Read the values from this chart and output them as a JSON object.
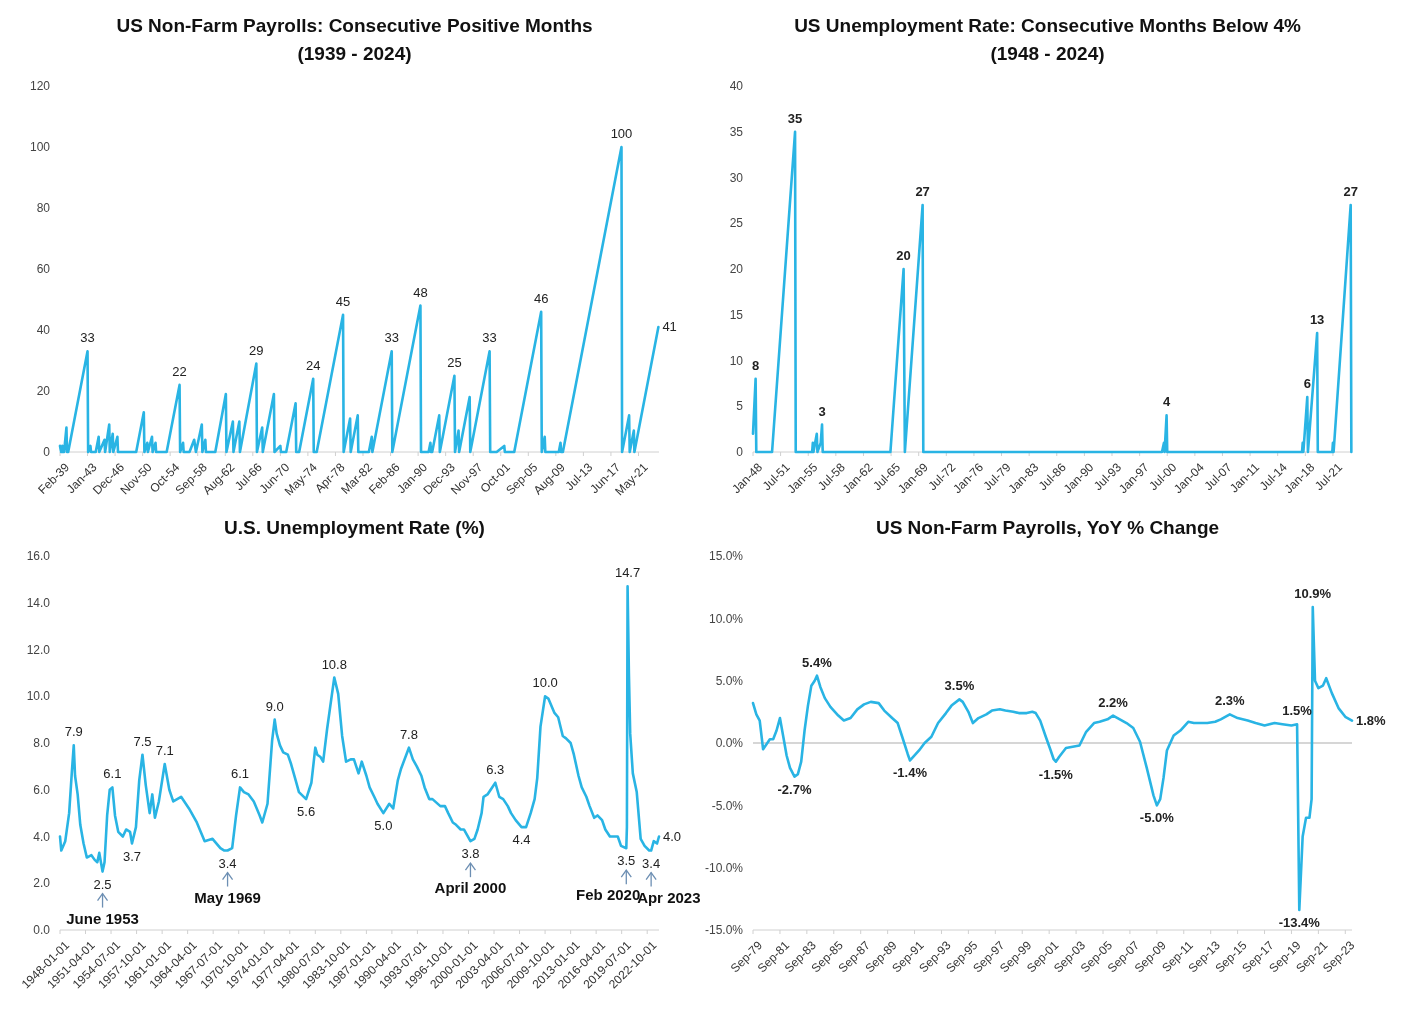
{
  "chart_data": [
    {
      "type": "line",
      "title": "US Non-Farm Payrolls: Consecutive Positive Months",
      "subtitle": "(1939 - 2024)",
      "x": [
        "1939-02",
        "1939-04",
        "1939-06",
        "1939-07",
        "1939-09",
        "1940-01",
        "1940-02",
        "1940-04",
        "1943-01",
        "1943-02",
        "1943-06",
        "1943-07",
        "1944-03",
        "1944-08",
        "1944-09",
        "1945-06",
        "1945-07",
        "1946-02",
        "1946-03",
        "1946-08",
        "1946-09",
        "1947-04",
        "1947-05",
        "1949-12",
        "1951-01",
        "1951-02",
        "1951-07",
        "1951-08",
        "1952-03",
        "1952-04",
        "1952-09",
        "1952-10",
        "1954-04",
        "1956-02",
        "1956-03",
        "1956-08",
        "1956-09",
        "1957-07",
        "1958-03",
        "1958-06",
        "1959-04",
        "1959-05",
        "1959-10",
        "1959-11",
        "1961-03",
        "1962-09",
        "1962-10",
        "1963-09",
        "1963-10",
        "1964-08",
        "1964-09",
        "1967-01",
        "1967-02",
        "1967-11",
        "1967-12",
        "1969-07",
        "1969-08",
        "1970-06",
        "1970-07",
        "1971-04",
        "1972-08",
        "1972-09",
        "1973-02",
        "1975-02",
        "1975-03",
        "1975-08",
        "1979-05",
        "1979-06",
        "1980-05",
        "1980-06",
        "1981-06",
        "1981-07",
        "1983-01",
        "1983-06",
        "1983-07",
        "1986-04",
        "1986-05",
        "1990-05",
        "1990-06",
        "1991-07",
        "1991-10",
        "1991-11",
        "1992-01",
        "1993-01",
        "1993-02",
        "1995-03",
        "1995-04",
        "1995-10",
        "1995-11",
        "1997-05",
        "1997-06",
        "2000-03",
        "2000-04",
        "2001-03",
        "2002-04",
        "2002-05",
        "2003-09",
        "2007-07",
        "2007-08",
        "2008-01",
        "2008-02",
        "2010-01",
        "2010-04",
        "2010-05",
        "2010-08",
        "2018-12",
        "2019-01",
        "2020-01",
        "2020-02",
        "2020-09",
        "2020-10",
        "2024-03"
      ],
      "series": [
        {
          "color": "#29b4e4",
          "values": [
            2,
            0,
            2,
            0,
            0,
            8,
            0,
            0,
            33,
            0,
            2,
            0,
            0,
            5,
            0,
            4,
            0,
            9,
            0,
            6,
            0,
            5,
            0,
            0,
            13,
            0,
            3,
            0,
            5,
            0,
            3,
            0,
            0,
            22,
            0,
            3,
            0,
            0,
            4,
            0,
            9,
            0,
            4,
            0,
            0,
            19,
            0,
            10,
            0,
            10,
            0,
            29,
            0,
            8,
            0,
            19,
            0,
            2,
            0,
            0,
            16,
            0,
            0,
            24,
            0,
            0,
            45,
            0,
            11,
            0,
            12,
            0,
            0,
            5,
            0,
            33,
            0,
            48,
            0,
            0,
            3,
            0,
            0,
            12,
            0,
            25,
            0,
            7,
            0,
            18,
            0,
            33,
            0,
            0,
            2,
            0,
            0,
            46,
            0,
            5,
            0,
            0,
            3,
            0,
            0,
            100,
            0,
            12,
            0,
            7,
            0,
            41
          ],
          "value_labels": [
            null,
            null,
            null,
            null,
            null,
            null,
            null,
            null,
            "33",
            null,
            null,
            null,
            null,
            null,
            null,
            null,
            null,
            null,
            null,
            null,
            null,
            null,
            null,
            null,
            null,
            null,
            null,
            null,
            null,
            null,
            null,
            null,
            null,
            "22",
            null,
            null,
            null,
            null,
            null,
            null,
            null,
            null,
            null,
            null,
            null,
            null,
            null,
            null,
            null,
            null,
            null,
            "29",
            null,
            null,
            null,
            null,
            null,
            null,
            null,
            null,
            null,
            null,
            null,
            "24",
            null,
            null,
            "45",
            null,
            null,
            null,
            null,
            null,
            null,
            null,
            null,
            "33",
            null,
            "48",
            null,
            null,
            null,
            null,
            null,
            null,
            null,
            "25",
            null,
            null,
            null,
            null,
            null,
            "33",
            null,
            null,
            null,
            null,
            null,
            "46",
            null,
            null,
            null,
            null,
            null,
            null,
            null,
            "100",
            null,
            null,
            null,
            null,
            null,
            "41"
          ]
        }
      ],
      "xlim": [
        "1939-02",
        "2024-04"
      ],
      "xticks": [
        {
          "value": "1939-02",
          "label": "Feb-39"
        },
        {
          "value": "1943-01",
          "label": "Jan-43"
        },
        {
          "value": "1946-12",
          "label": "Dec-46"
        },
        {
          "value": "1950-11",
          "label": "Nov-50"
        },
        {
          "value": "1954-10",
          "label": "Oct-54"
        },
        {
          "value": "1958-09",
          "label": "Sep-58"
        },
        {
          "value": "1962-08",
          "label": "Aug-62"
        },
        {
          "value": "1966-07",
          "label": "Jul-66"
        },
        {
          "value": "1970-06",
          "label": "Jun-70"
        },
        {
          "value": "1974-05",
          "label": "May-74"
        },
        {
          "value": "1978-04",
          "label": "Apr-78"
        },
        {
          "value": "1982-03",
          "label": "Mar-82"
        },
        {
          "value": "1986-02",
          "label": "Feb-86"
        },
        {
          "value": "1990-01",
          "label": "Jan-90"
        },
        {
          "value": "1993-12",
          "label": "Dec-93"
        },
        {
          "value": "1997-11",
          "label": "Nov-97"
        },
        {
          "value": "2001-10",
          "label": "Oct-01"
        },
        {
          "value": "2005-09",
          "label": "Sep-05"
        },
        {
          "value": "2009-08",
          "label": "Aug-09"
        },
        {
          "value": "2013-07",
          "label": "Jul-13"
        },
        {
          "value": "2017-06",
          "label": "Jun-17"
        },
        {
          "value": "2021-05",
          "label": "May-21"
        }
      ],
      "ylim": [
        0,
        120
      ],
      "yticks": [
        0,
        20,
        40,
        60,
        80,
        100,
        120
      ]
    },
    {
      "type": "line",
      "title": "US Unemployment Rate: Consecutive Months Below 4%",
      "subtitle": "(1948 - 2024)",
      "x": [
        "1948-01",
        "1948-05",
        "1948-06",
        "1950-06",
        "1953-05",
        "1953-06",
        "1955-07",
        "1955-08",
        "1955-09",
        "1956-02",
        "1956-03",
        "1956-08",
        "1956-10",
        "1956-11",
        "1965-06",
        "1967-02",
        "1967-04",
        "1969-07",
        "1969-08",
        "1999-11",
        "2000-02",
        "2000-03",
        "2000-06",
        "2000-07",
        "2017-08",
        "2017-09",
        "2017-10",
        "2018-04",
        "2018-05",
        "2019-07",
        "2019-08",
        "2021-06",
        "2021-07",
        "2021-08",
        "2023-10",
        "2023-11"
      ],
      "series": [
        {
          "color": "#29b4e4",
          "values": [
            2,
            8,
            0,
            0,
            35,
            0,
            0,
            1,
            0,
            2,
            0,
            1,
            3,
            0,
            0,
            20,
            0,
            27,
            0,
            0,
            1,
            0,
            4,
            0,
            0,
            1,
            0,
            6,
            0,
            13,
            0,
            0,
            1,
            0,
            27,
            0
          ],
          "value_labels": [
            null,
            "8",
            null,
            null,
            "35",
            null,
            null,
            null,
            null,
            null,
            null,
            null,
            "3",
            null,
            null,
            "20",
            null,
            "27",
            null,
            null,
            null,
            null,
            "4",
            null,
            null,
            null,
            null,
            "6",
            null,
            "13",
            null,
            null,
            null,
            null,
            "27",
            null
          ]
        }
      ],
      "xlim": [
        "1948-01",
        "2023-12"
      ],
      "xticks": [
        {
          "value": "1948-01",
          "label": "Jan-48"
        },
        {
          "value": "1951-07",
          "label": "Jul-51"
        },
        {
          "value": "1955-01",
          "label": "Jan-55"
        },
        {
          "value": "1958-07",
          "label": "Jul-58"
        },
        {
          "value": "1962-01",
          "label": "Jan-62"
        },
        {
          "value": "1965-07",
          "label": "Jul-65"
        },
        {
          "value": "1969-01",
          "label": "Jan-69"
        },
        {
          "value": "1972-07",
          "label": "Jul-72"
        },
        {
          "value": "1976-01",
          "label": "Jan-76"
        },
        {
          "value": "1979-07",
          "label": "Jul-79"
        },
        {
          "value": "1983-01",
          "label": "Jan-83"
        },
        {
          "value": "1986-07",
          "label": "Jul-86"
        },
        {
          "value": "1990-01",
          "label": "Jan-90"
        },
        {
          "value": "1993-07",
          "label": "Jul-93"
        },
        {
          "value": "1997-01",
          "label": "Jan-97"
        },
        {
          "value": "2000-07",
          "label": "Jul-00"
        },
        {
          "value": "2004-01",
          "label": "Jan-04"
        },
        {
          "value": "2007-07",
          "label": "Jul-07"
        },
        {
          "value": "2011-01",
          "label": "Jan-11"
        },
        {
          "value": "2014-07",
          "label": "Jul-14"
        },
        {
          "value": "2018-01",
          "label": "Jan-18"
        },
        {
          "value": "2021-07",
          "label": "Jul-21"
        }
      ],
      "ylim": [
        0,
        40
      ],
      "yticks": [
        0,
        5,
        10,
        15,
        20,
        25,
        30,
        35,
        40
      ]
    },
    {
      "type": "line",
      "title": "U.S. Unemployment Rate (%)",
      "x": [
        "1948-01",
        "1948-03",
        "1948-09",
        "1949-03",
        "1949-07",
        "1949-10",
        "1949-12",
        "1950-04",
        "1950-08",
        "1951-01",
        "1951-06",
        "1952-01",
        "1952-06",
        "1952-10",
        "1953-01",
        "1953-06",
        "1953-09",
        "1954-01",
        "1954-05",
        "1954-09",
        "1955-01",
        "1955-06",
        "1956-01",
        "1956-06",
        "1956-12",
        "1957-03",
        "1957-09",
        "1958-02",
        "1958-07",
        "1958-12",
        "1959-06",
        "1959-10",
        "1960-02",
        "1960-08",
        "1961-05",
        "1961-12",
        "1962-06",
        "1963-06",
        "1964-06",
        "1965-06",
        "1966-06",
        "1967-06",
        "1968-06",
        "1968-12",
        "1969-05",
        "1969-12",
        "1970-06",
        "1970-12",
        "1971-06",
        "1972-01",
        "1972-09",
        "1973-06",
        "1973-10",
        "1974-06",
        "1975-01",
        "1975-05",
        "1975-08",
        "1976-01",
        "1976-06",
        "1977-01",
        "1977-06",
        "1978-01",
        "1978-06",
        "1979-05",
        "1980-01",
        "1980-07",
        "1980-10",
        "1981-03",
        "1981-07",
        "1982-01",
        "1982-06",
        "1982-12",
        "1983-06",
        "1983-12",
        "1984-06",
        "1985-01",
        "1985-06",
        "1986-01",
        "1986-06",
        "1987-01",
        "1987-06",
        "1988-01",
        "1988-06",
        "1989-03",
        "1989-12",
        "1990-06",
        "1991-01",
        "1991-06",
        "1992-06",
        "1992-12",
        "1993-06",
        "1994-01",
        "1994-06",
        "1995-01",
        "1995-06",
        "1996-06",
        "1997-01",
        "1997-06",
        "1998-01",
        "1998-06",
        "1999-01",
        "1999-06",
        "2000-04",
        "2000-10",
        "2001-03",
        "2001-09",
        "2001-12",
        "2002-06",
        "2003-06",
        "2003-12",
        "2004-06",
        "2005-01",
        "2005-06",
        "2006-01",
        "2006-10",
        "2007-05",
        "2007-12",
        "2008-06",
        "2008-10",
        "2009-03",
        "2009-10",
        "2010-03",
        "2010-12",
        "2011-06",
        "2012-01",
        "2012-06",
        "2013-01",
        "2013-06",
        "2014-01",
        "2014-06",
        "2015-01",
        "2015-06",
        "2016-01",
        "2016-06",
        "2017-01",
        "2017-06",
        "2018-01",
        "2018-06",
        "2019-01",
        "2019-06",
        "2020-02",
        "2020-03",
        "2020-04",
        "2020-06",
        "2020-08",
        "2020-12",
        "2021-06",
        "2021-12",
        "2022-06",
        "2023-01",
        "2023-04",
        "2023-08",
        "2024-01",
        "2024-04"
      ],
      "series": [
        {
          "color": "#29b4e4",
          "values": [
            4.0,
            3.4,
            3.8,
            5.0,
            6.7,
            7.9,
            6.6,
            5.8,
            4.5,
            3.7,
            3.1,
            3.2,
            3.0,
            2.9,
            3.3,
            2.5,
            2.9,
            4.9,
            6.0,
            6.1,
            4.9,
            4.2,
            4.0,
            4.3,
            4.2,
            3.7,
            4.4,
            6.4,
            7.5,
            6.2,
            5.0,
            5.8,
            4.8,
            5.5,
            7.1,
            6.0,
            5.5,
            5.7,
            5.2,
            4.6,
            3.8,
            3.9,
            3.5,
            3.4,
            3.4,
            3.5,
            4.9,
            6.1,
            5.9,
            5.8,
            5.5,
            4.9,
            4.6,
            5.4,
            8.1,
            9.0,
            8.4,
            7.9,
            7.6,
            7.5,
            7.1,
            6.4,
            5.9,
            5.6,
            6.3,
            7.8,
            7.5,
            7.4,
            7.2,
            8.6,
            9.6,
            10.8,
            10.1,
            8.3,
            7.2,
            7.3,
            7.3,
            6.7,
            7.2,
            6.6,
            6.1,
            5.7,
            5.4,
            5.0,
            5.4,
            5.2,
            6.4,
            6.9,
            7.8,
            7.3,
            7.0,
            6.6,
            6.1,
            5.6,
            5.6,
            5.3,
            5.3,
            5.0,
            4.6,
            4.5,
            4.3,
            4.3,
            3.8,
            3.9,
            4.3,
            5.0,
            5.7,
            5.8,
            6.3,
            5.7,
            5.6,
            5.3,
            5.0,
            4.7,
            4.4,
            4.4,
            5.0,
            5.6,
            6.5,
            8.7,
            10.0,
            9.9,
            9.3,
            9.1,
            8.3,
            8.2,
            8.0,
            7.5,
            6.6,
            6.1,
            5.7,
            5.3,
            4.8,
            4.9,
            4.7,
            4.3,
            4.0,
            4.0,
            4.0,
            3.6,
            3.5,
            4.4,
            14.7,
            11.0,
            8.4,
            6.7,
            5.9,
            3.9,
            3.6,
            3.4,
            3.4,
            3.8,
            3.7,
            4.0
          ],
          "value_labels": [
            null,
            null,
            null,
            null,
            null,
            "7.9",
            null,
            null,
            null,
            null,
            null,
            null,
            null,
            null,
            null,
            "2.5",
            null,
            null,
            null,
            "6.1",
            null,
            null,
            null,
            null,
            null,
            "3.7",
            null,
            null,
            "7.5",
            null,
            null,
            null,
            null,
            null,
            "7.1",
            null,
            null,
            null,
            null,
            null,
            null,
            null,
            null,
            null,
            "3.4",
            null,
            null,
            "6.1",
            null,
            null,
            null,
            null,
            null,
            null,
            null,
            "9.0",
            null,
            null,
            null,
            null,
            null,
            null,
            null,
            "5.6",
            null,
            null,
            null,
            null,
            null,
            null,
            null,
            "10.8",
            null,
            null,
            null,
            null,
            null,
            null,
            null,
            null,
            null,
            null,
            null,
            "5.0",
            null,
            null,
            null,
            null,
            "7.8",
            null,
            null,
            null,
            null,
            null,
            null,
            null,
            null,
            null,
            null,
            null,
            null,
            null,
            "3.8",
            null,
            null,
            null,
            null,
            null,
            "6.3",
            null,
            null,
            null,
            null,
            null,
            "4.4",
            null,
            null,
            null,
            null,
            null,
            "10.0",
            null,
            null,
            null,
            null,
            null,
            null,
            null,
            null,
            null,
            null,
            null,
            null,
            null,
            null,
            null,
            null,
            null,
            null,
            null,
            "3.5",
            null,
            "14.7",
            null,
            null,
            null,
            null,
            null,
            null,
            null,
            "3.4",
            null,
            null,
            "4.0"
          ]
        }
      ],
      "xlim": [
        "1948-01",
        "2024-04"
      ],
      "xticks": [
        {
          "value": "1948-01",
          "label": "1948-01-01"
        },
        {
          "value": "1951-04",
          "label": "1951-04-01"
        },
        {
          "value": "1954-07",
          "label": "1954-07-01"
        },
        {
          "value": "1957-10",
          "label": "1957-10-01"
        },
        {
          "value": "1961-01",
          "label": "1961-01-01"
        },
        {
          "value": "1964-04",
          "label": "1964-04-01"
        },
        {
          "value": "1967-07",
          "label": "1967-07-01"
        },
        {
          "value": "1970-10",
          "label": "1970-10-01"
        },
        {
          "value": "1974-01",
          "label": "1974-01-01"
        },
        {
          "value": "1977-04",
          "label": "1977-04-01"
        },
        {
          "value": "1980-07",
          "label": "1980-07-01"
        },
        {
          "value": "1983-10",
          "label": "1983-10-01"
        },
        {
          "value": "1987-01",
          "label": "1987-01-01"
        },
        {
          "value": "1990-04",
          "label": "1990-04-01"
        },
        {
          "value": "1993-07",
          "label": "1993-07-01"
        },
        {
          "value": "1996-10",
          "label": "1996-10-01"
        },
        {
          "value": "2000-01",
          "label": "2000-01-01"
        },
        {
          "value": "2003-04",
          "label": "2003-04-01"
        },
        {
          "value": "2006-07",
          "label": "2006-07-01"
        },
        {
          "value": "2009-10",
          "label": "2009-10-01"
        },
        {
          "value": "2013-01",
          "label": "2013-01-01"
        },
        {
          "value": "2016-04",
          "label": "2016-04-01"
        },
        {
          "value": "2019-07",
          "label": "2019-07-01"
        },
        {
          "value": "2022-10",
          "label": "2022-10-01"
        }
      ],
      "ylim": [
        0,
        16
      ],
      "yticks": [
        {
          "value": 0,
          "label": "0.0"
        },
        {
          "value": 2,
          "label": "2.0"
        },
        {
          "value": 4,
          "label": "4.0"
        },
        {
          "value": 6,
          "label": "6.0"
        },
        {
          "value": 8,
          "label": "8.0"
        },
        {
          "value": 10,
          "label": "10.0"
        },
        {
          "value": 12,
          "label": "12.0"
        },
        {
          "value": 14,
          "label": "14.0"
        },
        {
          "value": 16,
          "label": "16.0"
        }
      ],
      "annotations": [
        {
          "text": "June 1953",
          "x": "1953-06",
          "y": 2.5
        },
        {
          "text": "May 1969",
          "x": "1969-05",
          "y": 3.4
        },
        {
          "text": "April 2000",
          "x": "2000-04",
          "y": 3.8
        },
        {
          "text": "Feb 2020",
          "x": "2020-02",
          "y": 3.5
        },
        {
          "text": "Apr 2023",
          "x": "2023-04",
          "y": 3.4
        }
      ]
    },
    {
      "type": "line",
      "title": "US Non-Farm Payrolls, YoY % Change",
      "x": [
        "1979-09",
        "1979-12",
        "1980-03",
        "1980-06",
        "1980-09",
        "1980-12",
        "1981-03",
        "1981-06",
        "1981-09",
        "1981-12",
        "1982-03",
        "1982-06",
        "1982-10",
        "1983-01",
        "1983-04",
        "1983-07",
        "1983-10",
        "1984-01",
        "1984-04",
        "1984-06",
        "1984-09",
        "1985-01",
        "1985-06",
        "1986-01",
        "1986-06",
        "1986-12",
        "1987-06",
        "1987-12",
        "1988-06",
        "1989-01",
        "1989-06",
        "1990-01",
        "1990-06",
        "1990-10",
        "1991-03",
        "1991-05",
        "1991-09",
        "1992-01",
        "1992-06",
        "1992-12",
        "1993-06",
        "1994-01",
        "1994-06",
        "1995-01",
        "1995-04",
        "1995-09",
        "1996-01",
        "1996-06",
        "1997-01",
        "1997-06",
        "1998-01",
        "1998-06",
        "1999-01",
        "1999-06",
        "2000-01",
        "2000-06",
        "2000-09",
        "2001-01",
        "2001-06",
        "2001-10",
        "2002-01",
        "2002-03",
        "2002-06",
        "2002-12",
        "2003-06",
        "2003-12",
        "2004-06",
        "2005-01",
        "2005-06",
        "2006-01",
        "2006-06",
        "2006-12",
        "2007-06",
        "2007-12",
        "2008-06",
        "2008-12",
        "2009-06",
        "2009-09",
        "2009-12",
        "2010-03",
        "2010-06",
        "2010-12",
        "2011-06",
        "2012-01",
        "2012-06",
        "2013-01",
        "2013-06",
        "2014-01",
        "2014-06",
        "2015-02",
        "2015-09",
        "2016-06",
        "2017-01",
        "2017-09",
        "2018-06",
        "2019-01",
        "2019-09",
        "2020-02",
        "2020-04",
        "2020-07",
        "2020-10",
        "2021-01",
        "2021-03",
        "2021-04",
        "2021-06",
        "2021-09",
        "2022-01",
        "2022-04",
        "2022-09",
        "2023-03",
        "2023-09",
        "2024-03"
      ],
      "series": [
        {
          "color": "#29b4e4",
          "values": [
            3.2,
            2.3,
            1.8,
            -0.5,
            -0.1,
            0.3,
            0.3,
            1.0,
            2.0,
            0.5,
            -1.0,
            -2.0,
            -2.7,
            -2.5,
            -1.5,
            1.0,
            3.0,
            4.6,
            5.0,
            5.4,
            4.5,
            3.6,
            2.9,
            2.2,
            1.8,
            2.0,
            2.7,
            3.1,
            3.3,
            3.2,
            2.6,
            2.0,
            1.6,
            0.5,
            -0.9,
            -1.4,
            -1.0,
            -0.6,
            0.0,
            0.5,
            1.6,
            2.4,
            3.0,
            3.5,
            3.3,
            2.5,
            1.6,
            2.0,
            2.3,
            2.6,
            2.7,
            2.6,
            2.5,
            2.4,
            2.4,
            2.5,
            2.4,
            1.8,
            0.5,
            -0.5,
            -1.3,
            -1.5,
            -1.1,
            -0.4,
            -0.3,
            -0.2,
            0.9,
            1.6,
            1.7,
            1.9,
            2.2,
            1.9,
            1.6,
            1.2,
            0.1,
            -2.0,
            -4.2,
            -5.0,
            -4.5,
            -2.8,
            -0.6,
            0.6,
            1.0,
            1.7,
            1.6,
            1.6,
            1.6,
            1.7,
            1.9,
            2.3,
            2.0,
            1.8,
            1.6,
            1.4,
            1.6,
            1.5,
            1.4,
            1.5,
            -13.4,
            -7.5,
            -6.0,
            -6.0,
            -4.5,
            10.9,
            5.0,
            4.4,
            4.6,
            5.2,
            4.0,
            2.8,
            2.1,
            1.8
          ],
          "value_labels": [
            null,
            null,
            null,
            null,
            null,
            null,
            null,
            null,
            null,
            null,
            null,
            null,
            "-2.7%",
            null,
            null,
            null,
            null,
            null,
            null,
            "5.4%",
            null,
            null,
            null,
            null,
            null,
            null,
            null,
            null,
            null,
            null,
            null,
            null,
            null,
            null,
            null,
            "-1.4%",
            null,
            null,
            null,
            null,
            null,
            null,
            null,
            "3.5%",
            null,
            null,
            null,
            null,
            null,
            null,
            null,
            null,
            null,
            null,
            null,
            null,
            null,
            null,
            null,
            null,
            null,
            "-1.5%",
            null,
            null,
            null,
            null,
            null,
            null,
            null,
            null,
            "2.2%",
            null,
            null,
            null,
            null,
            null,
            null,
            "-5.0%",
            null,
            null,
            null,
            null,
            null,
            null,
            null,
            null,
            null,
            null,
            null,
            "2.3%",
            null,
            null,
            null,
            null,
            null,
            null,
            null,
            "1.5%",
            "-13.4%",
            null,
            null,
            null,
            null,
            "10.9%",
            null,
            null,
            null,
            null,
            null,
            null,
            null,
            "1.8%"
          ]
        }
      ],
      "xlim": [
        "1979-09",
        "2024-03"
      ],
      "xticks": [
        {
          "value": "1979-09",
          "label": "Sep-79"
        },
        {
          "value": "1981-09",
          "label": "Sep-81"
        },
        {
          "value": "1983-09",
          "label": "Sep-83"
        },
        {
          "value": "1985-09",
          "label": "Sep-85"
        },
        {
          "value": "1987-09",
          "label": "Sep-87"
        },
        {
          "value": "1989-09",
          "label": "Sep-89"
        },
        {
          "value": "1991-09",
          "label": "Sep-91"
        },
        {
          "value": "1993-09",
          "label": "Sep-93"
        },
        {
          "value": "1995-09",
          "label": "Sep-95"
        },
        {
          "value": "1997-09",
          "label": "Sep-97"
        },
        {
          "value": "1999-09",
          "label": "Sep-99"
        },
        {
          "value": "2001-09",
          "label": "Sep-01"
        },
        {
          "value": "2003-09",
          "label": "Sep-03"
        },
        {
          "value": "2005-09",
          "label": "Sep-05"
        },
        {
          "value": "2007-09",
          "label": "Sep-07"
        },
        {
          "value": "2009-09",
          "label": "Sep-09"
        },
        {
          "value": "2011-09",
          "label": "Sep-11"
        },
        {
          "value": "2013-09",
          "label": "Sep-13"
        },
        {
          "value": "2015-09",
          "label": "Sep-15"
        },
        {
          "value": "2017-09",
          "label": "Sep-17"
        },
        {
          "value": "2019-09",
          "label": "Sep-19"
        },
        {
          "value": "2021-09",
          "label": "Sep-21"
        },
        {
          "value": "2023-09",
          "label": "Sep-23"
        }
      ],
      "ylim": [
        -15,
        15
      ],
      "yticks": [
        {
          "value": -15,
          "label": "-15.0%"
        },
        {
          "value": -10,
          "label": "-10.0%"
        },
        {
          "value": -5,
          "label": "-5.0%"
        },
        {
          "value": 0,
          "label": "0.0%"
        },
        {
          "value": 5,
          "label": "5.0%"
        },
        {
          "value": 10,
          "label": "10.0%"
        },
        {
          "value": 15,
          "label": "15.0%"
        }
      ],
      "ref_lines": [
        {
          "axis": "y",
          "value": 0,
          "color": "#c8c8c8"
        }
      ]
    }
  ]
}
